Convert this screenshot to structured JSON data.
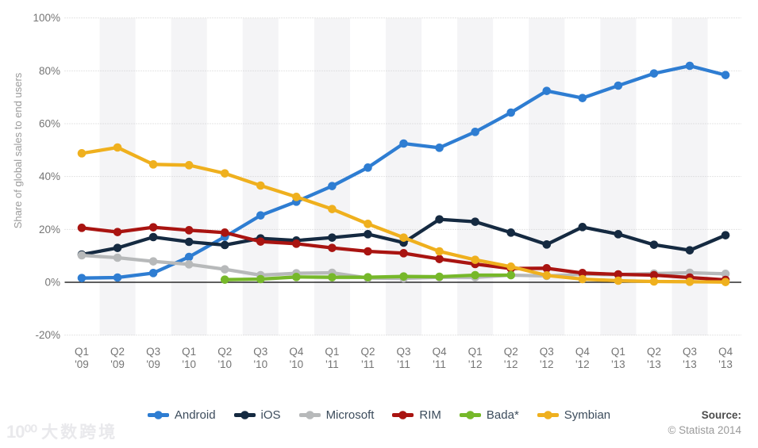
{
  "chart_data": {
    "type": "line",
    "title": "",
    "ylabel": "Share of global sales to end users",
    "ylim": [
      -20,
      100
    ],
    "yticks": [
      100,
      80,
      60,
      40,
      20,
      0,
      -20
    ],
    "ytick_suffix": "%",
    "grid": "horizontal-dotted",
    "plot_band_color": "#f4f4f6",
    "legend_position": "bottom",
    "categories": [
      "Q1 '09",
      "Q2 '09",
      "Q3 '09",
      "Q1 '10",
      "Q2 '10",
      "Q3 '10",
      "Q4 '10",
      "Q1 '11",
      "Q2 '11",
      "Q3 '11",
      "Q4 '11",
      "Q1 '12",
      "Q2 '12",
      "Q3 '12",
      "Q4 '12",
      "Q1 '13",
      "Q2 '13",
      "Q3 '13",
      "Q4 '13"
    ],
    "series": [
      {
        "name": "Android",
        "color": "#2e7dd2",
        "values": [
          1.6,
          1.8,
          3.5,
          9.6,
          17.2,
          25.3,
          30.5,
          36.4,
          43.4,
          52.5,
          50.9,
          56.9,
          64.2,
          72.4,
          69.7,
          74.4,
          79.0,
          81.9,
          78.4
        ]
      },
      {
        "name": "iOS",
        "color": "#152a41",
        "values": [
          10.5,
          13.0,
          17.1,
          15.3,
          14.1,
          16.6,
          15.8,
          16.9,
          18.2,
          15.0,
          23.8,
          22.9,
          18.8,
          14.3,
          20.9,
          18.2,
          14.2,
          12.1,
          17.8
        ]
      },
      {
        "name": "Microsoft",
        "color": "#b7b9ba",
        "values": [
          10.2,
          9.3,
          7.9,
          6.8,
          4.9,
          2.7,
          3.4,
          3.6,
          1.6,
          1.5,
          1.9,
          1.9,
          2.7,
          2.4,
          3.0,
          2.9,
          3.3,
          3.6,
          3.2
        ]
      },
      {
        "name": "RIM",
        "color": "#a91411",
        "values": [
          20.6,
          19.0,
          20.8,
          19.7,
          18.8,
          15.4,
          14.6,
          13.0,
          11.7,
          11.0,
          8.8,
          6.9,
          5.2,
          5.3,
          3.5,
          3.0,
          2.7,
          1.8,
          0.9
        ]
      },
      {
        "name": "Bada*",
        "color": "#76b82a",
        "values": [
          null,
          null,
          null,
          null,
          1.0,
          1.2,
          2.0,
          1.9,
          1.9,
          2.2,
          2.1,
          2.7,
          2.7,
          null,
          null,
          null,
          null,
          null,
          null
        ]
      },
      {
        "name": "Symbian",
        "color": "#efb01e",
        "values": [
          48.8,
          51.0,
          44.6,
          44.3,
          41.2,
          36.6,
          32.3,
          27.7,
          22.1,
          16.9,
          11.7,
          8.5,
          5.9,
          2.6,
          1.2,
          0.6,
          0.3,
          0.2,
          0.1
        ]
      }
    ]
  },
  "footer": {
    "source_label": "Source:",
    "copyright": "© Statista 2014"
  },
  "watermark": {
    "logo_text": "10⁰⁰",
    "text": "大数跨境"
  }
}
